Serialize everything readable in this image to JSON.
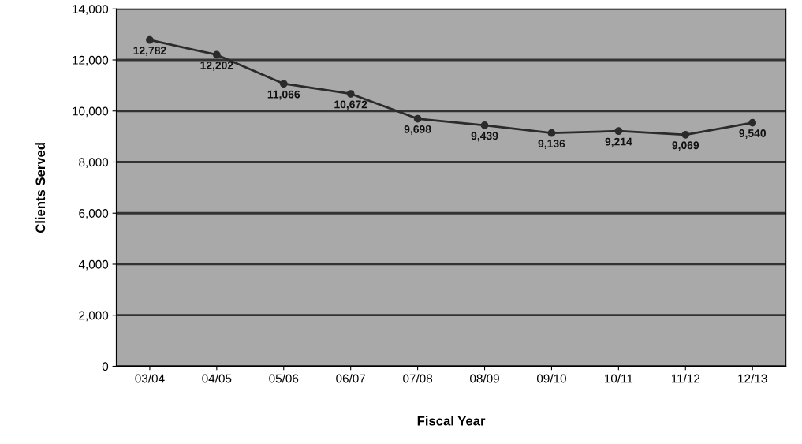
{
  "chart_data": {
    "type": "line",
    "xlabel": "Fiscal Year",
    "ylabel": "Clients Served",
    "categories": [
      "03/04",
      "04/05",
      "05/06",
      "06/07",
      "07/08",
      "08/09",
      "09/10",
      "10/11",
      "11/12",
      "12/13"
    ],
    "values": [
      12782,
      12202,
      11066,
      10672,
      9698,
      9439,
      9136,
      9214,
      9069,
      9540
    ],
    "value_labels": [
      "12,782",
      "12,202",
      "11,066",
      "10,672",
      "9,698",
      "9,439",
      "9,136",
      "9,214",
      "9,069",
      "9,540"
    ],
    "color": "#2b2b2b",
    "marker": "circle",
    "line_style": "solid",
    "ylim": [
      0,
      14000
    ],
    "yticks": [
      {
        "value": 0,
        "label": "0"
      },
      {
        "value": 2000,
        "label": "2,000"
      },
      {
        "value": 4000,
        "label": "4,000"
      },
      {
        "value": 6000,
        "label": "6,000"
      },
      {
        "value": 8000,
        "label": "8,000"
      },
      {
        "value": 10000,
        "label": "10,000"
      },
      {
        "value": 12000,
        "label": "12,000"
      },
      {
        "value": 14000,
        "label": "14,000"
      }
    ],
    "grid": "y"
  }
}
